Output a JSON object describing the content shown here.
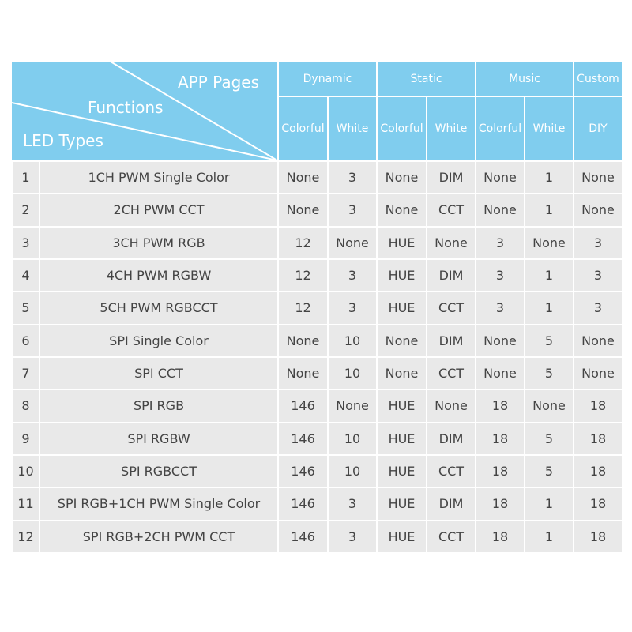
{
  "header": {
    "corner": {
      "app_pages": "APP Pages",
      "functions": "Functions",
      "led_types": "LED Types"
    },
    "groups": [
      "Dynamic",
      "Static",
      "Music",
      "Custom"
    ],
    "subheaders": [
      "Colorful",
      "White",
      "Colorful",
      "White",
      "Colorful",
      "White",
      "DIY"
    ]
  },
  "table": {
    "rows": [
      [
        1,
        "1CH PWM Single Color",
        "None",
        3,
        "None",
        "DIM",
        "None",
        1,
        "None"
      ],
      [
        2,
        "2CH PWM CCT",
        "None",
        3,
        "None",
        "CCT",
        "None",
        1,
        "None"
      ],
      [
        3,
        "3CH PWM RGB",
        12,
        "None",
        "HUE",
        "None",
        3,
        "None",
        3
      ],
      [
        4,
        "4CH PWM RGBW",
        12,
        3,
        "HUE",
        "DIM",
        3,
        1,
        3
      ],
      [
        5,
        "5CH PWM RGBCCT",
        12,
        3,
        "HUE",
        "CCT",
        3,
        1,
        3
      ],
      [
        6,
        "SPI Single Color",
        "None",
        10,
        "None",
        "DIM",
        "None",
        5,
        "None"
      ],
      [
        7,
        "SPI CCT",
        "None",
        10,
        "None",
        "CCT",
        "None",
        5,
        "None"
      ],
      [
        8,
        "SPI RGB",
        146,
        "None",
        "HUE",
        "None",
        18,
        "None",
        18
      ],
      [
        9,
        "SPI RGBW",
        146,
        10,
        "HUE",
        "DIM",
        18,
        5,
        18
      ],
      [
        10,
        "SPI RGBCCT",
        146,
        10,
        "HUE",
        "CCT",
        18,
        5,
        18
      ],
      [
        11,
        "SPI RGB+1CH PWM Single Color",
        146,
        3,
        "HUE",
        "DIM",
        18,
        1,
        18
      ],
      [
        12,
        "SPI RGB+2CH PWM CCT",
        146,
        3,
        "HUE",
        "CCT",
        18,
        1,
        18
      ]
    ]
  }
}
